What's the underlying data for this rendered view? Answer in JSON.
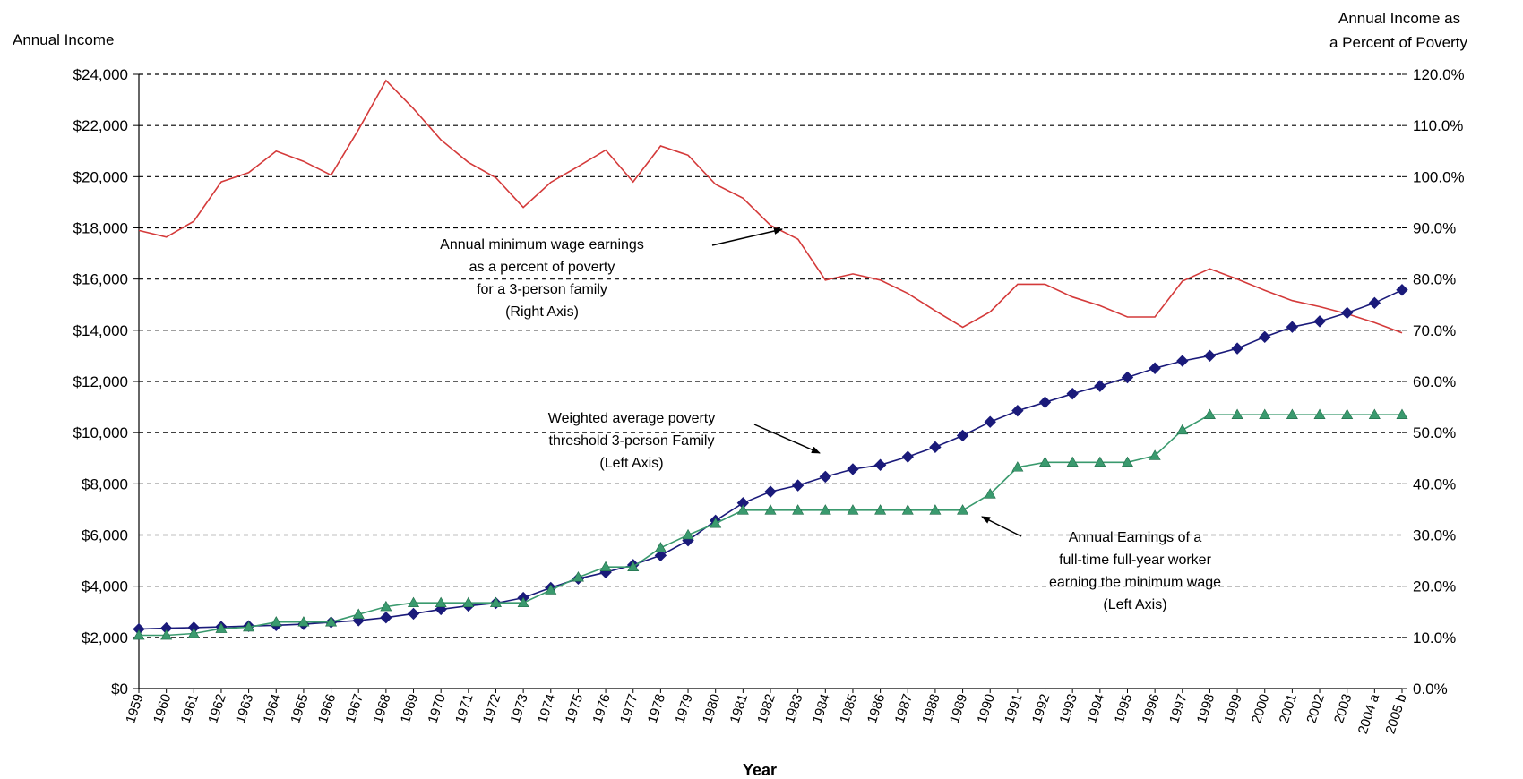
{
  "chart_data": {
    "type": "line",
    "title": "",
    "left_axis": {
      "label": "Annual Income",
      "ylim": [
        0,
        24000
      ],
      "ticks": [
        "$0",
        "$2,000",
        "$4,000",
        "$6,000",
        "$8,000",
        "$10,000",
        "$12,000",
        "$14,000",
        "$16,000",
        "$18,000",
        "$20,000",
        "$22,000",
        "$24,000"
      ]
    },
    "right_axis": {
      "label_lines": [
        "Annual Income as",
        "a Percent of Poverty"
      ],
      "ylim": [
        0,
        120
      ],
      "ticks": [
        "0.0%",
        "10.0%",
        "20.0%",
        "30.0%",
        "40.0%",
        "50.0%",
        "60.0%",
        "70.0%",
        "80.0%",
        "90.0%",
        "100.0%",
        "110.0%",
        "120.0%"
      ]
    },
    "xlabel": "Year",
    "categories": [
      "1959",
      "1960",
      "1961",
      "1962",
      "1963",
      "1964",
      "1965",
      "1966",
      "1967",
      "1968",
      "1969",
      "1970",
      "1971",
      "1972",
      "1973",
      "1974",
      "1975",
      "1976",
      "1977",
      "1978",
      "1979",
      "1980",
      "1981",
      "1982",
      "1983",
      "1984",
      "1985",
      "1986",
      "1987",
      "1988",
      "1989",
      "1990",
      "1991",
      "1992",
      "1993",
      "1994",
      "1995",
      "1996",
      "1997",
      "1998",
      "1999",
      "2000",
      "2001",
      "2002",
      "2003",
      "2004 a",
      "2005 b"
    ],
    "grid": "horizontal dashed",
    "series": [
      {
        "axis": "right",
        "color": "#d43a3a",
        "marker": "none",
        "values": [
          89.5,
          88.2,
          91.3,
          99.0,
          100.8,
          105.0,
          103.0,
          100.3,
          109.2,
          118.8,
          113.3,
          107.2,
          102.8,
          99.8,
          94.0,
          98.9,
          102.0,
          105.2,
          99.0,
          106.0,
          104.2,
          98.5,
          95.8,
          90.5,
          87.8,
          79.8,
          81.0,
          79.8,
          77.2,
          73.8,
          70.6,
          73.6,
          79.0,
          79.0,
          76.5,
          74.8,
          72.6,
          72.6,
          79.6,
          82.0,
          80.0,
          77.8,
          75.8,
          74.6,
          73.2,
          71.5,
          69.5
        ]
      },
      {
        "axis": "left",
        "color": "#1a1a7a",
        "marker": "diamond",
        "values": [
          2324,
          2359,
          2383,
          2412,
          2442,
          2473,
          2514,
          2588,
          2661,
          2774,
          2924,
          3099,
          3233,
          3339,
          3548,
          3938,
          4293,
          4540,
          4833,
          5201,
          5784,
          6565,
          7250,
          7693,
          7938,
          8277,
          8573,
          8737,
          9056,
          9435,
          9885,
          10419,
          10857,
          11186,
          11522,
          11821,
          12158,
          12516,
          12802,
          13003,
          13290,
          13738,
          14128,
          14348,
          14680,
          15067,
          15577
        ]
      },
      {
        "axis": "left",
        "color": "#3a9a6e",
        "marker": "triangle",
        "values": [
          2080,
          2080,
          2150,
          2340,
          2400,
          2600,
          2600,
          2600,
          2900,
          3200,
          3350,
          3350,
          3350,
          3350,
          3350,
          3850,
          4350,
          4750,
          4750,
          5500,
          6000,
          6450,
          6970,
          6970,
          6970,
          6970,
          6970,
          6970,
          6970,
          6970,
          6970,
          7600,
          8650,
          8840,
          8840,
          8840,
          8840,
          9100,
          10100,
          10700,
          10700,
          10700,
          10700,
          10700,
          10700,
          10700,
          10700
        ]
      }
    ],
    "annotations": [
      [
        "Annual minimum wage earnings",
        "as a percent of poverty",
        "for a 3-person family",
        "(Right Axis)"
      ],
      [
        "Weighted average poverty",
        "threshold 3-person Family",
        "(Left Axis)"
      ],
      [
        "Annual Earnings of a",
        "full-time full-year worker",
        "earning the minimum wage",
        "(Left Axis)"
      ]
    ]
  }
}
